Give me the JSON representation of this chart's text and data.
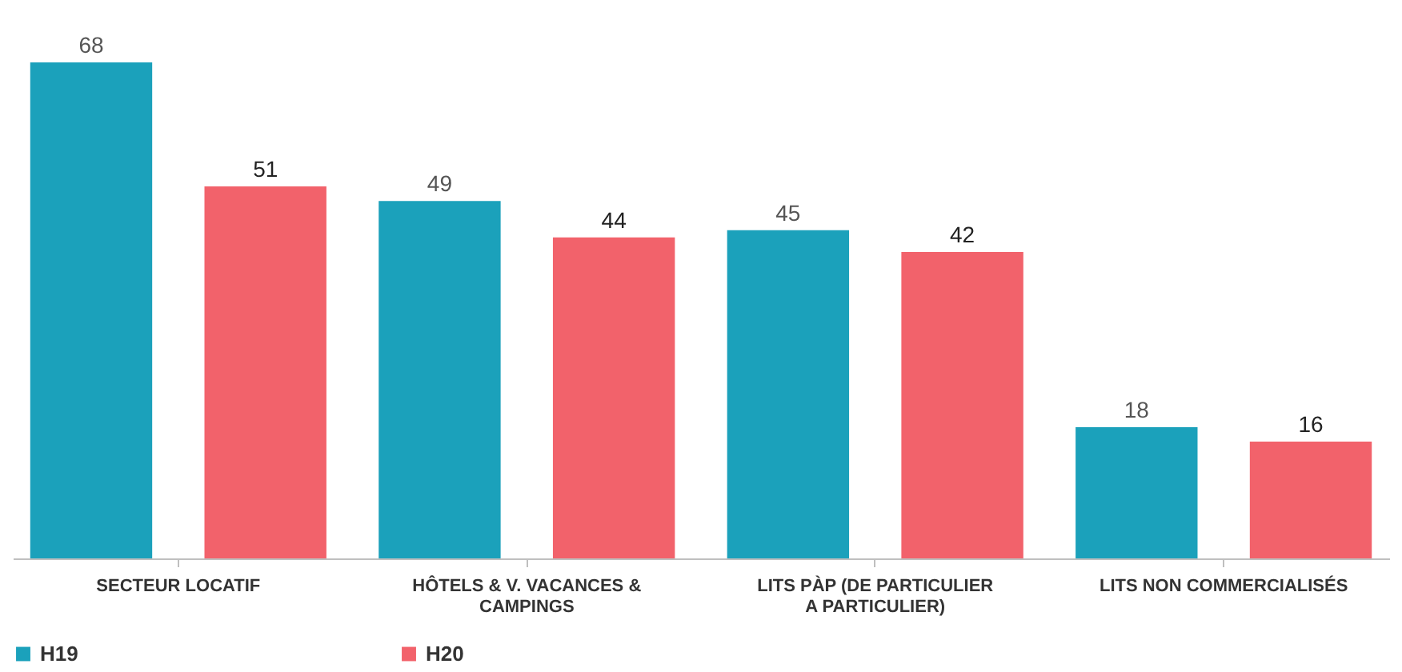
{
  "chart_data": {
    "type": "bar",
    "categories": [
      "SECTEUR LOCATIF",
      "HÔTELS & V. VACANCES & CAMPINGS",
      "LITS PÀP (DE PARTICULIER A PARTICULIER)",
      "LITS NON COMMERCIALISÉS"
    ],
    "series": [
      {
        "name": "H19",
        "color": "#1ba1bb",
        "values": [
          68,
          49,
          45,
          18
        ]
      },
      {
        "name": "H20",
        "color": "#f2626b",
        "values": [
          51,
          44,
          42,
          16
        ]
      }
    ],
    "data_labels": true,
    "legend": "bottom",
    "grid": false
  }
}
